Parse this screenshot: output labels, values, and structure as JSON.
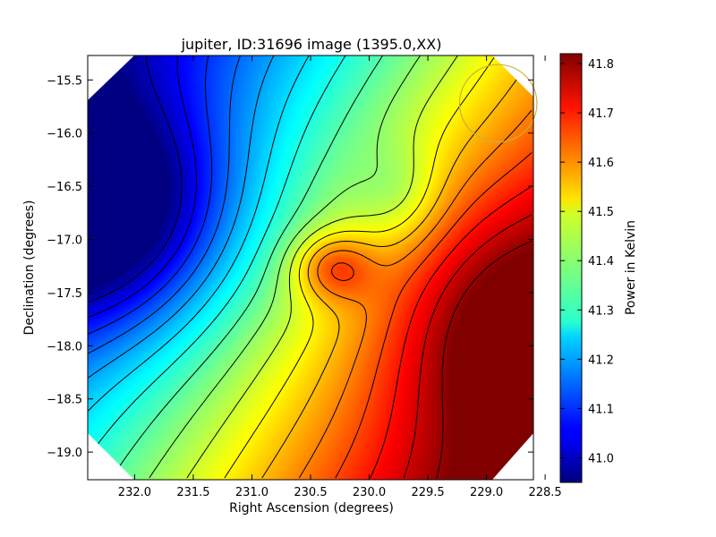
{
  "chart_data": {
    "type": "heatmap",
    "title": "jupiter, ID:31696 image (1395.0,XX)",
    "xlabel": "Right Ascension (degrees)",
    "ylabel": "Declination (degrees)",
    "xlim": [
      232.4,
      228.6
    ],
    "ylim": [
      -19.26,
      -15.27
    ],
    "x_ticks": [
      232.0,
      231.5,
      231.0,
      230.5,
      230.0,
      229.5,
      229.0,
      228.5
    ],
    "x_tick_labels": [
      "232.0",
      "231.5",
      "231.0",
      "230.5",
      "230.0",
      "229.5",
      "229.0",
      "228.5"
    ],
    "y_ticks": [
      -15.5,
      -16.0,
      -16.5,
      -17.0,
      -17.5,
      -18.0,
      -18.5,
      -19.0
    ],
    "y_tick_labels": [
      "−15.5",
      "−16.0",
      "−16.5",
      "−17.0",
      "−17.5",
      "−18.0",
      "−18.5",
      "−19.0"
    ],
    "colorbar": {
      "label": "Power in Kelvin",
      "range": [
        40.95,
        41.82
      ],
      "colormap": "jet",
      "ticks": [
        41.0,
        41.1,
        41.2,
        41.3,
        41.4,
        41.5,
        41.6,
        41.7,
        41.8
      ],
      "tick_labels": [
        "41.0",
        "41.1",
        "41.2",
        "41.3",
        "41.4",
        "41.5",
        "41.6",
        "41.7",
        "41.8"
      ]
    },
    "peaks": [
      {
        "kind": "minimum",
        "ra": 232.2,
        "dec": -16.75,
        "value": 40.96
      },
      {
        "kind": "maximum",
        "ra": 228.9,
        "dec": -17.85,
        "value": 41.82
      },
      {
        "kind": "local-maximum",
        "ra": 230.2,
        "dec": -17.25,
        "value": 41.6
      }
    ],
    "beam_circle": {
      "ra": 228.9,
      "dec": -15.72,
      "radius_deg": 0.33
    },
    "contours": true,
    "grid": false,
    "colors": {
      "beam_circle": "#c8b040",
      "contour": "#000000"
    }
  }
}
